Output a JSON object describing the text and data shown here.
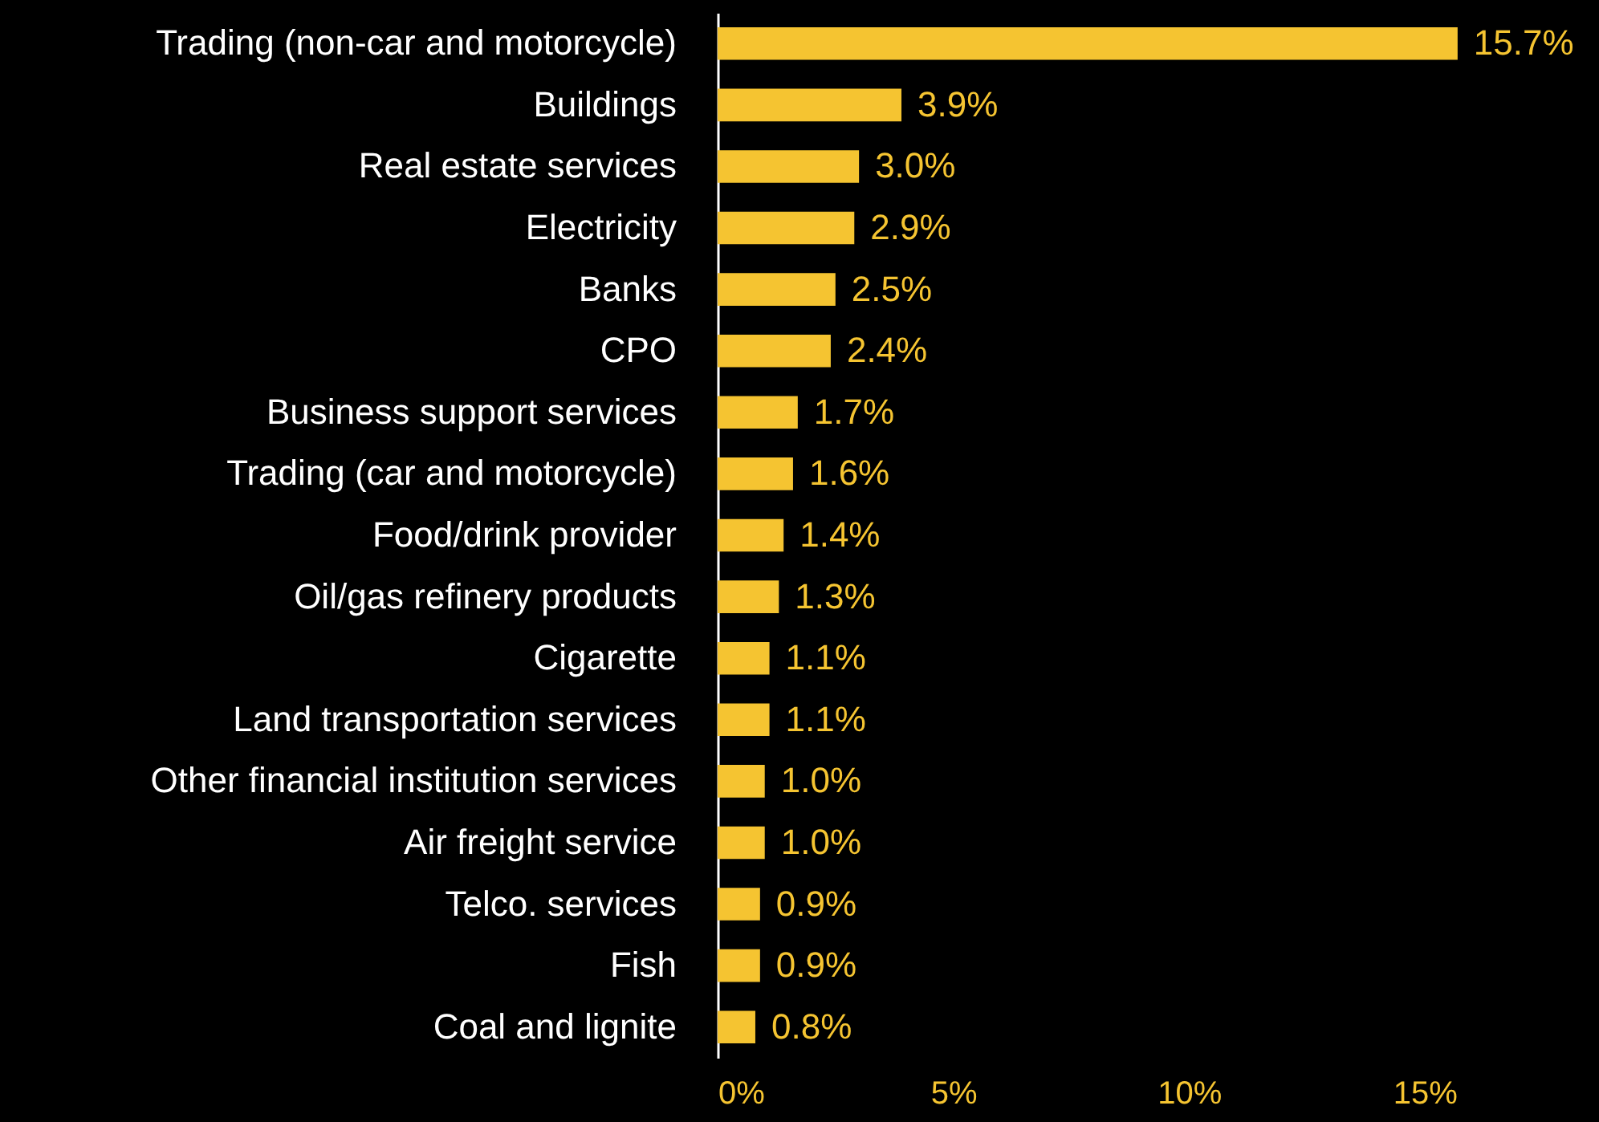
{
  "chart_data": {
    "type": "bar",
    "orientation": "horizontal",
    "color": "#f5c431",
    "categories": [
      "Trading (non-car and motorcycle)",
      "Buildings",
      "Real estate services",
      "Electricity",
      "Banks",
      "CPO",
      "Business support services",
      "Trading (car and motorcycle)",
      "Food/drink provider",
      "Oil/gas refinery products",
      "Cigarette",
      "Land transportation services",
      "Other financial institution services",
      "Air freight service",
      "Telco. services",
      "Fish",
      "Coal and lignite"
    ],
    "values": [
      15.7,
      3.9,
      3.0,
      2.9,
      2.5,
      2.4,
      1.7,
      1.6,
      1.4,
      1.3,
      1.1,
      1.1,
      1.0,
      1.0,
      0.9,
      0.9,
      0.8
    ],
    "value_labels": [
      "15.7%",
      "3.9%",
      "3.0%",
      "2.9%",
      "2.5%",
      "2.4%",
      "1.7%",
      "1.6%",
      "1.4%",
      "1.3%",
      "1.1%",
      "1.1%",
      "1.0%",
      "1.0%",
      "0.9%",
      "0.9%",
      "0.8%"
    ],
    "xlim": [
      0,
      18.7
    ],
    "xticks": [
      {
        "value": 0,
        "label": "0%"
      },
      {
        "value": 5,
        "label": "5%"
      },
      {
        "value": 10,
        "label": "10%"
      },
      {
        "value": 15,
        "label": "15%"
      }
    ],
    "grid": false
  }
}
